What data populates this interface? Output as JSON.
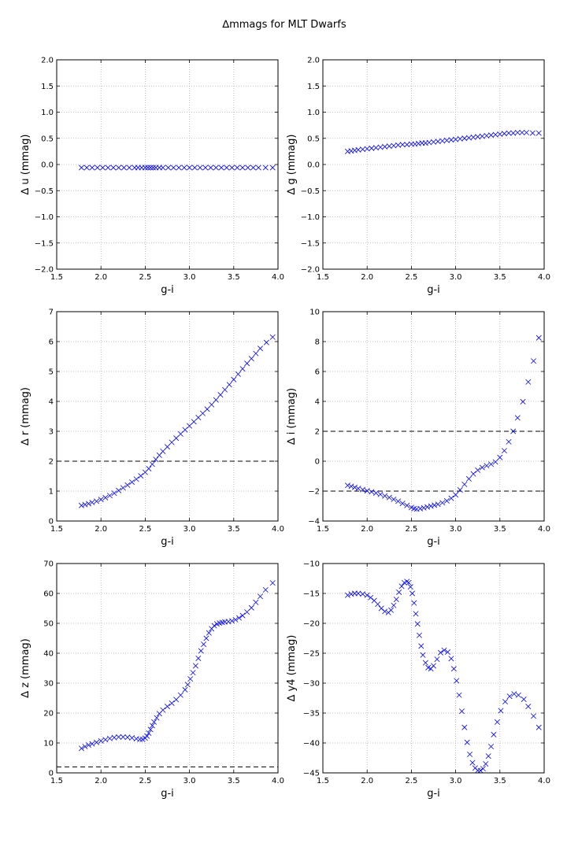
{
  "title": "∆mmags for MLT Dwarfs",
  "chart_data": [
    {
      "type": "scatter",
      "xlabel": "g-i",
      "ylabel": "∆ u (mmag)",
      "xlim": [
        1.5,
        4.0
      ],
      "ylim": [
        -2.0,
        2.0
      ],
      "xticks": [
        "1.5",
        "2.0",
        "2.5",
        "3.0",
        "3.5",
        "4.0"
      ],
      "yticks": [
        "−2.0",
        "−1.5",
        "−1.0",
        "−0.5",
        "0.0",
        "0.5",
        "1.0",
        "1.5",
        "2.0"
      ],
      "grid": true,
      "marker": "x",
      "color": "#0000ff",
      "hlines": [],
      "x": [
        1.78,
        1.84,
        1.9,
        1.96,
        2.02,
        2.08,
        2.14,
        2.2,
        2.26,
        2.32,
        2.38,
        2.42,
        2.46,
        2.5,
        2.53,
        2.56,
        2.59,
        2.62,
        2.66,
        2.7,
        2.76,
        2.82,
        2.88,
        2.94,
        3.0,
        3.06,
        3.12,
        3.18,
        3.24,
        3.3,
        3.36,
        3.42,
        3.48,
        3.54,
        3.6,
        3.66,
        3.72,
        3.78,
        3.86,
        3.94
      ],
      "y": [
        -0.06,
        -0.06,
        -0.06,
        -0.06,
        -0.06,
        -0.06,
        -0.06,
        -0.06,
        -0.06,
        -0.06,
        -0.06,
        -0.06,
        -0.06,
        -0.06,
        -0.06,
        -0.06,
        -0.06,
        -0.06,
        -0.06,
        -0.06,
        -0.06,
        -0.06,
        -0.06,
        -0.06,
        -0.06,
        -0.06,
        -0.06,
        -0.06,
        -0.06,
        -0.06,
        -0.06,
        -0.06,
        -0.06,
        -0.06,
        -0.06,
        -0.06,
        -0.06,
        -0.06,
        -0.06,
        -0.06
      ]
    },
    {
      "type": "scatter",
      "xlabel": "g-i",
      "ylabel": "∆ g (mmag)",
      "xlim": [
        1.5,
        4.0
      ],
      "ylim": [
        -2.0,
        2.0
      ],
      "xticks": [
        "1.5",
        "2.0",
        "2.5",
        "3.0",
        "3.5",
        "4.0"
      ],
      "yticks": [
        "−2.0",
        "−1.5",
        "−1.0",
        "−0.5",
        "0.0",
        "0.5",
        "1.0",
        "1.5",
        "2.0"
      ],
      "grid": true,
      "marker": "x",
      "color": "#0000ff",
      "hlines": [],
      "x": [
        1.78,
        1.82,
        1.86,
        1.9,
        1.95,
        2.0,
        2.05,
        2.1,
        2.15,
        2.2,
        2.25,
        2.3,
        2.35,
        2.4,
        2.45,
        2.5,
        2.54,
        2.58,
        2.62,
        2.66,
        2.7,
        2.75,
        2.8,
        2.85,
        2.9,
        2.95,
        3.0,
        3.05,
        3.1,
        3.15,
        3.2,
        3.25,
        3.3,
        3.35,
        3.4,
        3.45,
        3.5,
        3.55,
        3.6,
        3.65,
        3.7,
        3.75,
        3.8,
        3.87,
        3.94
      ],
      "y": [
        0.25,
        0.26,
        0.27,
        0.28,
        0.29,
        0.3,
        0.31,
        0.32,
        0.33,
        0.34,
        0.35,
        0.36,
        0.37,
        0.38,
        0.38,
        0.39,
        0.39,
        0.4,
        0.41,
        0.41,
        0.42,
        0.43,
        0.44,
        0.45,
        0.46,
        0.47,
        0.48,
        0.49,
        0.5,
        0.51,
        0.52,
        0.53,
        0.54,
        0.55,
        0.56,
        0.57,
        0.58,
        0.59,
        0.6,
        0.6,
        0.61,
        0.61,
        0.61,
        0.6,
        0.6
      ]
    },
    {
      "type": "scatter",
      "xlabel": "g-i",
      "ylabel": "∆ r (mmag)",
      "xlim": [
        1.5,
        4.0
      ],
      "ylim": [
        0,
        7
      ],
      "xticks": [
        "1.5",
        "2.0",
        "2.5",
        "3.0",
        "3.5",
        "4.0"
      ],
      "yticks": [
        "0",
        "1",
        "2",
        "3",
        "4",
        "5",
        "6",
        "7"
      ],
      "grid": true,
      "marker": "x",
      "color": "#0000ff",
      "hlines": [
        2
      ],
      "x": [
        1.78,
        1.82,
        1.86,
        1.9,
        1.95,
        2.0,
        2.05,
        2.1,
        2.15,
        2.2,
        2.25,
        2.3,
        2.35,
        2.4,
        2.45,
        2.5,
        2.54,
        2.58,
        2.62,
        2.66,
        2.7,
        2.75,
        2.8,
        2.85,
        2.9,
        2.95,
        3.0,
        3.05,
        3.1,
        3.15,
        3.2,
        3.25,
        3.3,
        3.35,
        3.4,
        3.45,
        3.5,
        3.55,
        3.6,
        3.65,
        3.7,
        3.75,
        3.8,
        3.87,
        3.94
      ],
      "y": [
        0.52,
        0.55,
        0.58,
        0.62,
        0.66,
        0.72,
        0.78,
        0.85,
        0.93,
        1.02,
        1.11,
        1.2,
        1.3,
        1.4,
        1.51,
        1.63,
        1.75,
        1.9,
        2.06,
        2.2,
        2.33,
        2.48,
        2.63,
        2.77,
        2.91,
        3.05,
        3.18,
        3.32,
        3.46,
        3.6,
        3.74,
        3.89,
        4.05,
        4.22,
        4.39,
        4.56,
        4.73,
        4.91,
        5.09,
        5.27,
        5.43,
        5.6,
        5.77,
        5.97,
        6.15
      ]
    },
    {
      "type": "scatter",
      "xlabel": "g-i",
      "ylabel": "∆ i (mmag)",
      "xlim": [
        1.5,
        4.0
      ],
      "ylim": [
        -4,
        10
      ],
      "xticks": [
        "1.5",
        "2.0",
        "2.5",
        "3.0",
        "3.5",
        "4.0"
      ],
      "yticks": [
        "−4",
        "−2",
        "0",
        "2",
        "4",
        "6",
        "8",
        "10"
      ],
      "grid": true,
      "marker": "x",
      "color": "#0000ff",
      "hlines": [
        -2,
        2
      ],
      "x": [
        1.78,
        1.82,
        1.86,
        1.9,
        1.95,
        2.0,
        2.05,
        2.1,
        2.15,
        2.2,
        2.25,
        2.3,
        2.35,
        2.4,
        2.45,
        2.5,
        2.53,
        2.56,
        2.6,
        2.64,
        2.68,
        2.72,
        2.76,
        2.8,
        2.85,
        2.9,
        2.95,
        3.0,
        3.05,
        3.1,
        3.15,
        3.2,
        3.25,
        3.3,
        3.35,
        3.4,
        3.45,
        3.5,
        3.55,
        3.6,
        3.65,
        3.7,
        3.76,
        3.82,
        3.88,
        3.94
      ],
      "y": [
        -1.62,
        -1.68,
        -1.75,
        -1.82,
        -1.9,
        -1.98,
        -2.05,
        -2.13,
        -2.22,
        -2.32,
        -2.43,
        -2.55,
        -2.68,
        -2.82,
        -2.96,
        -3.1,
        -3.17,
        -3.2,
        -3.17,
        -3.12,
        -3.06,
        -3.0,
        -2.94,
        -2.88,
        -2.78,
        -2.65,
        -2.48,
        -2.25,
        -1.92,
        -1.55,
        -1.18,
        -0.85,
        -0.6,
        -0.42,
        -0.3,
        -0.2,
        -0.05,
        0.25,
        0.7,
        1.3,
        2.0,
        2.9,
        3.98,
        5.3,
        6.7,
        8.25
      ]
    },
    {
      "type": "scatter",
      "xlabel": "g-i",
      "ylabel": "∆ z (mmag)",
      "xlim": [
        1.5,
        4.0
      ],
      "ylim": [
        0,
        70
      ],
      "xticks": [
        "1.5",
        "2.0",
        "2.5",
        "3.0",
        "3.5",
        "4.0"
      ],
      "yticks": [
        "0",
        "10",
        "20",
        "30",
        "40",
        "50",
        "60",
        "70"
      ],
      "grid": true,
      "marker": "x",
      "color": "#0000ff",
      "hlines": [
        2
      ],
      "x": [
        1.78,
        1.82,
        1.86,
        1.9,
        1.95,
        2.0,
        2.05,
        2.1,
        2.15,
        2.2,
        2.25,
        2.3,
        2.35,
        2.4,
        2.44,
        2.47,
        2.5,
        2.52,
        2.54,
        2.56,
        2.58,
        2.6,
        2.63,
        2.66,
        2.7,
        2.75,
        2.8,
        2.85,
        2.9,
        2.95,
        2.98,
        3.01,
        3.04,
        3.07,
        3.1,
        3.13,
        3.16,
        3.19,
        3.22,
        3.25,
        3.28,
        3.31,
        3.34,
        3.37,
        3.4,
        3.44,
        3.48,
        3.52,
        3.56,
        3.6,
        3.65,
        3.7,
        3.75,
        3.8,
        3.86,
        3.94
      ],
      "y": [
        8.2,
        8.8,
        9.3,
        9.7,
        10.2,
        10.7,
        11.1,
        11.5,
        11.8,
        12.0,
        12.0,
        11.9,
        11.7,
        11.4,
        11.2,
        11.2,
        11.6,
        12.3,
        13.3,
        14.5,
        15.8,
        17.0,
        18.4,
        19.8,
        21.0,
        22.2,
        23.3,
        24.5,
        26.0,
        27.8,
        29.5,
        31.4,
        33.5,
        35.8,
        38.3,
        40.8,
        43.0,
        45.0,
        46.8,
        48.2,
        49.2,
        49.8,
        50.1,
        50.3,
        50.5,
        50.6,
        50.8,
        51.2,
        51.8,
        52.6,
        53.8,
        55.2,
        57.0,
        59.0,
        61.2,
        63.5
      ]
    },
    {
      "type": "scatter",
      "xlabel": "g-i",
      "ylabel": "∆ y4 (mmag)",
      "xlim": [
        1.5,
        4.0
      ],
      "ylim": [
        -45,
        -10
      ],
      "xticks": [
        "1.5",
        "2.0",
        "2.5",
        "3.0",
        "3.5",
        "4.0"
      ],
      "yticks": [
        "−45",
        "−40",
        "−35",
        "−30",
        "−25",
        "−20",
        "−15",
        "−10"
      ],
      "grid": true,
      "marker": "x",
      "color": "#0000ff",
      "hlines": [],
      "x": [
        1.78,
        1.82,
        1.86,
        1.9,
        1.95,
        2.0,
        2.04,
        2.08,
        2.12,
        2.16,
        2.2,
        2.24,
        2.27,
        2.3,
        2.33,
        2.36,
        2.39,
        2.42,
        2.45,
        2.47,
        2.49,
        2.51,
        2.53,
        2.55,
        2.57,
        2.59,
        2.61,
        2.63,
        2.66,
        2.69,
        2.72,
        2.75,
        2.79,
        2.83,
        2.87,
        2.91,
        2.95,
        2.98,
        3.01,
        3.04,
        3.07,
        3.1,
        3.13,
        3.16,
        3.19,
        3.22,
        3.25,
        3.28,
        3.31,
        3.34,
        3.37,
        3.4,
        3.43,
        3.47,
        3.51,
        3.56,
        3.61,
        3.66,
        3.71,
        3.77,
        3.82,
        3.88,
        3.94
      ],
      "y": [
        -15.3,
        -15.1,
        -15.0,
        -15.0,
        -15.1,
        -15.3,
        -15.7,
        -16.2,
        -16.8,
        -17.5,
        -18.0,
        -18.2,
        -17.8,
        -17.0,
        -16.0,
        -14.8,
        -13.8,
        -13.2,
        -13.0,
        -13.2,
        -13.9,
        -15.0,
        -16.6,
        -18.4,
        -20.1,
        -22.0,
        -23.8,
        -25.3,
        -26.6,
        -27.4,
        -27.6,
        -27.1,
        -26.0,
        -24.9,
        -24.5,
        -24.8,
        -25.9,
        -27.6,
        -29.6,
        -32.0,
        -34.7,
        -37.4,
        -39.9,
        -41.9,
        -43.3,
        -44.2,
        -44.6,
        -44.6,
        -44.3,
        -43.5,
        -42.2,
        -40.6,
        -38.6,
        -36.5,
        -34.6,
        -33.1,
        -32.2,
        -31.8,
        -32.0,
        -32.7,
        -33.9,
        -35.5,
        -37.4
      ]
    }
  ]
}
